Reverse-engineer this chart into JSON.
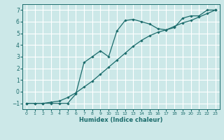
{
  "xlabel": "Humidex (Indice chaleur)",
  "bg_color": "#cce8e8",
  "grid_color": "#ffffff",
  "line_color": "#1a6b6b",
  "xlim": [
    -0.5,
    23.5
  ],
  "ylim": [
    -1.5,
    7.5
  ],
  "xticks": [
    0,
    1,
    2,
    3,
    4,
    5,
    6,
    7,
    8,
    9,
    10,
    11,
    12,
    13,
    14,
    15,
    16,
    17,
    18,
    19,
    20,
    21,
    22,
    23
  ],
  "yticks": [
    -1,
    0,
    1,
    2,
    3,
    4,
    5,
    6,
    7
  ],
  "curve1_x": [
    0,
    1,
    2,
    3,
    4,
    5,
    6,
    7,
    8,
    9,
    10,
    11,
    12,
    13,
    14,
    15,
    16,
    17,
    18,
    19,
    20,
    21,
    22,
    23
  ],
  "curve1_y": [
    -1,
    -1,
    -1,
    -1,
    -1,
    -1,
    -0.2,
    2.5,
    3.0,
    3.5,
    3.0,
    5.2,
    6.1,
    6.2,
    6.0,
    5.8,
    5.4,
    5.3,
    5.5,
    6.3,
    6.5,
    6.5,
    7.0,
    7.0
  ],
  "curve2_x": [
    0,
    1,
    2,
    3,
    4,
    5,
    6,
    7,
    8,
    9,
    10,
    11,
    12,
    13,
    14,
    15,
    16,
    17,
    18,
    19,
    20,
    21,
    22,
    23
  ],
  "curve2_y": [
    -1,
    -1,
    -1,
    -0.9,
    -0.8,
    -0.5,
    -0.1,
    0.4,
    0.9,
    1.5,
    2.1,
    2.7,
    3.3,
    3.9,
    4.4,
    4.8,
    5.1,
    5.3,
    5.6,
    5.9,
    6.1,
    6.4,
    6.7,
    7.0
  ]
}
